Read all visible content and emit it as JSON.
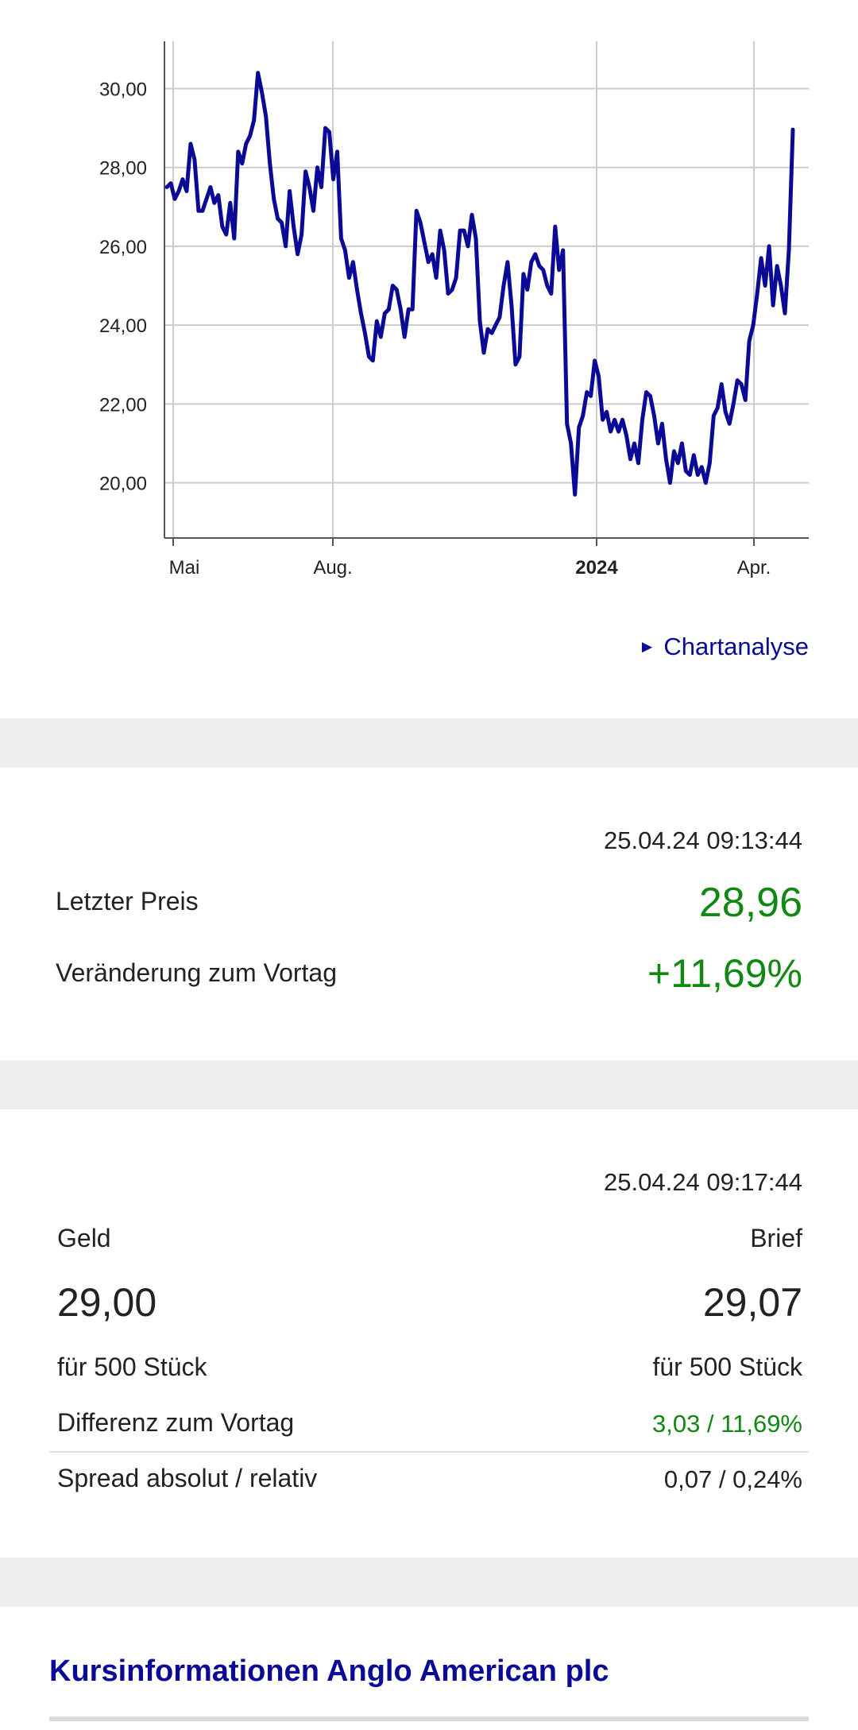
{
  "chart": {
    "link_label": "Chartanalyse",
    "line_color": "#0a0a96"
  },
  "chart_data": {
    "type": "line",
    "x_ticks": [
      "Mai",
      "Aug.",
      "2024",
      "Apr."
    ],
    "bold_x_tick": "2024",
    "y_ticks": [
      "30,00",
      "28,00",
      "26,00",
      "24,00",
      "22,00",
      "20,00"
    ],
    "ylim": [
      18.6,
      31.2
    ],
    "grid": true,
    "series": [
      {
        "values": [
          27.5,
          27.6,
          27.2,
          27.4,
          27.7,
          27.4,
          28.6,
          28.2,
          26.9,
          26.9,
          27.2,
          27.5,
          27.1,
          27.3,
          26.5,
          26.3,
          27.1,
          26.2,
          28.4,
          28.1,
          28.6,
          28.8,
          29.2,
          30.4,
          29.9,
          29.3,
          28.1,
          27.2,
          26.7,
          26.6,
          26.0,
          27.4,
          26.5,
          25.8,
          26.3,
          27.9,
          27.5,
          26.9,
          28.0,
          27.5,
          29.0,
          28.9,
          27.7,
          28.4,
          26.2,
          25.9,
          25.2,
          25.6,
          24.9,
          24.3,
          23.8,
          23.2,
          23.1,
          24.1,
          23.7,
          24.3,
          24.4,
          25.0,
          24.9,
          24.4,
          23.7,
          24.4,
          24.4,
          26.9,
          26.6,
          26.1,
          25.6,
          25.8,
          25.2,
          26.4,
          25.9,
          24.8,
          24.9,
          25.2,
          26.4,
          26.4,
          26.0,
          26.8,
          26.2,
          24.1,
          23.3,
          23.9,
          23.8,
          24.0,
          24.2,
          25.0,
          25.6,
          24.5,
          23.0,
          23.2,
          25.3,
          24.9,
          25.6,
          25.8,
          25.5,
          25.4,
          25.0,
          24.8,
          26.5,
          25.4,
          25.9,
          21.5,
          21.0,
          19.7,
          21.4,
          21.7,
          22.3,
          22.2,
          23.1,
          22.7,
          21.6,
          21.8,
          21.3,
          21.6,
          21.3,
          21.6,
          21.2,
          20.6,
          21.0,
          20.5,
          21.6,
          22.3,
          22.2,
          21.7,
          21.0,
          21.5,
          20.6,
          20.0,
          20.8,
          20.5,
          21.0,
          20.3,
          20.2,
          20.7,
          20.2,
          20.4,
          20.0,
          20.5,
          21.7,
          21.9,
          22.5,
          21.8,
          21.5,
          22.0,
          22.6,
          22.5,
          22.1,
          23.6,
          24.0,
          24.8,
          25.7,
          25.0,
          26.0,
          24.5,
          25.5,
          25.0,
          24.3,
          25.9,
          28.96
        ]
      }
    ]
  },
  "quote_last": {
    "timestamp": "25.04.24 09:13:44",
    "last_price_label": "Letzter Preis",
    "last_price_value": "28,96",
    "change_label": "Veränderung zum Vortag",
    "change_value": "+11,69%"
  },
  "quote_bid_ask": {
    "timestamp": "25.04.24 09:17:44",
    "bid_label": "Geld",
    "ask_label": "Brief",
    "bid_value": "29,00",
    "ask_value": "29,07",
    "bid_size": "für 500 Stück",
    "ask_size": "für 500 Stück",
    "diff_label": "Differenz zum Vortag",
    "diff_value": "3,03 / 11,69%",
    "spread_label": "Spread absolut / relativ",
    "spread_value": "0,07 / 0,24%"
  },
  "section": {
    "title": "Kursinformationen Anglo American plc"
  },
  "colors": {
    "accent": "#0a0a96",
    "positive": "#118811",
    "separator": "#efefef"
  }
}
